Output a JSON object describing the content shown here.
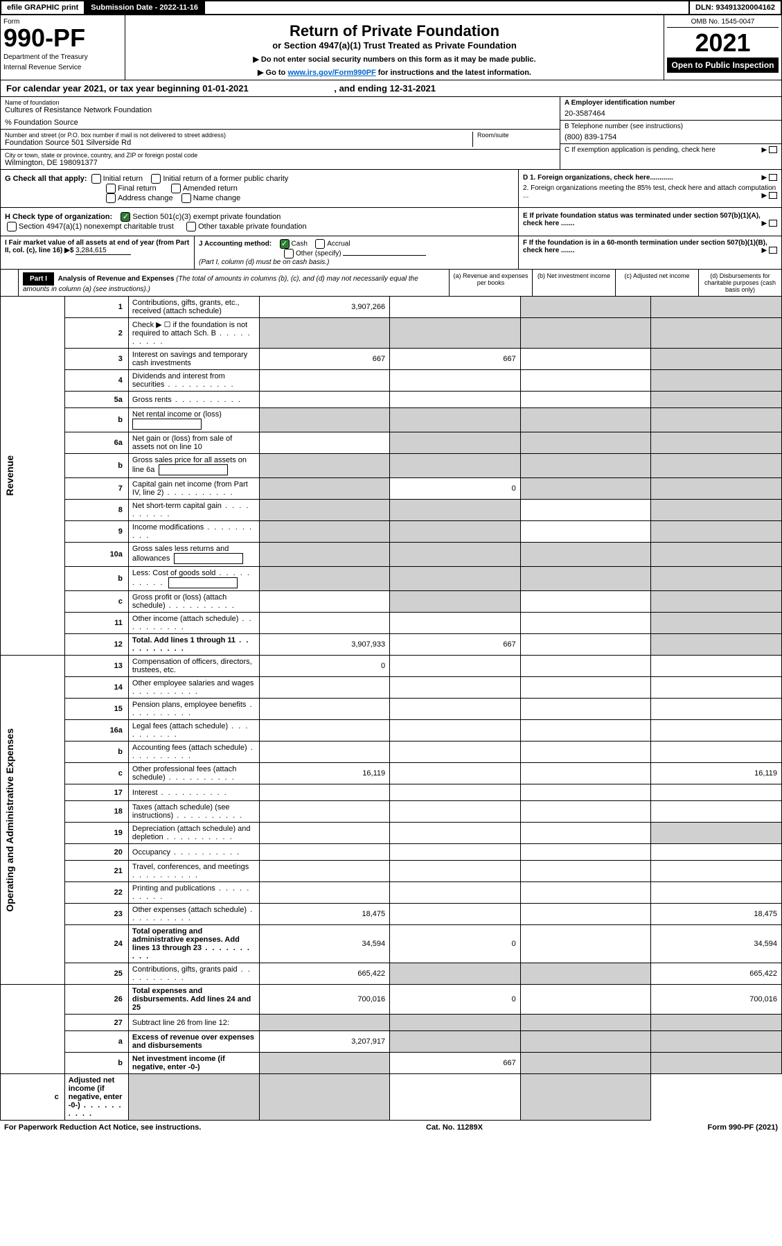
{
  "top": {
    "efile": "efile GRAPHIC print",
    "sub_date_label": "Submission Date - 2022-11-16",
    "dln": "DLN: 93491320004162"
  },
  "header": {
    "form_label": "Form",
    "form_no": "990-PF",
    "dept": "Department of the Treasury",
    "irs": "Internal Revenue Service",
    "title": "Return of Private Foundation",
    "subtitle": "or Section 4947(a)(1) Trust Treated as Private Foundation",
    "instr1": "▶ Do not enter social security numbers on this form as it may be made public.",
    "instr2_pre": "▶ Go to ",
    "instr2_link": "www.irs.gov/Form990PF",
    "instr2_post": " for instructions and the latest information.",
    "omb": "OMB No. 1545-0047",
    "year": "2021",
    "open": "Open to Public Inspection"
  },
  "cal_year": {
    "pre": "For calendar year 2021, or tax year beginning ",
    "begin": "01-01-2021",
    "mid": " , and ending ",
    "end": "12-31-2021"
  },
  "info": {
    "name_label": "Name of foundation",
    "name": "Cultures of Resistance Network Foundation",
    "care_of": "% Foundation Source",
    "addr_label": "Number and street (or P.O. box number if mail is not delivered to street address)",
    "addr": "Foundation Source 501 Silverside Rd",
    "room_label": "Room/suite",
    "city_label": "City or town, state or province, country, and ZIP or foreign postal code",
    "city": "Wilmington, DE  198091377",
    "a_label": "A Employer identification number",
    "ein": "20-3587464",
    "b_label": "B Telephone number (see instructions)",
    "phone": "(800) 839-1754",
    "c_label": "C If exemption application is pending, check here"
  },
  "g": {
    "label": "G Check all that apply:",
    "initial": "Initial return",
    "initial_former": "Initial return of a former public charity",
    "final": "Final return",
    "amended": "Amended return",
    "addr_change": "Address change",
    "name_change": "Name change"
  },
  "d": {
    "d1": "D 1. Foreign organizations, check here............",
    "d2": "2. Foreign organizations meeting the 85% test, check here and attach computation ..."
  },
  "h": {
    "label": "H Check type of organization:",
    "501c3": "Section 501(c)(3) exempt private foundation",
    "4947": "Section 4947(a)(1) nonexempt charitable trust",
    "other_taxable": "Other taxable private foundation"
  },
  "e": {
    "text": "E  If private foundation status was terminated under section 507(b)(1)(A), check here ......."
  },
  "i": {
    "label": "I Fair market value of all assets at end of year (from Part II, col. (c), line 16) ▶$ ",
    "value": "3,284,615"
  },
  "j": {
    "label": "J Accounting method:",
    "cash": "Cash",
    "accrual": "Accrual",
    "other": "Other (specify)",
    "note": "(Part I, column (d) must be on cash basis.)"
  },
  "f": {
    "text": "F  If the foundation is in a 60-month termination under section 507(b)(1)(B), check here ......."
  },
  "part1": {
    "label": "Part I",
    "title": "Analysis of Revenue and Expenses",
    "note": " (The total of amounts in columns (b), (c), and (d) may not necessarily equal the amounts in column (a) (see instructions).)",
    "col_a": "(a) Revenue and expenses per books",
    "col_b": "(b) Net investment income",
    "col_c": "(c) Adjusted net income",
    "col_d": "(d) Disbursements for charitable purposes (cash basis only)"
  },
  "sections": {
    "revenue": "Revenue",
    "expenses": "Operating and Administrative Expenses"
  },
  "rows": [
    {
      "n": "1",
      "desc": "Contributions, gifts, grants, etc., received (attach schedule)",
      "a": "3,907,266",
      "b": "",
      "c": "",
      "d": "",
      "shade_c": true,
      "shade_d": true
    },
    {
      "n": "2",
      "desc": "Check ▶ ☐ if the foundation is not required to attach Sch. B",
      "a": "",
      "b": "",
      "c": "",
      "d": "",
      "shade_a": true,
      "shade_b": true,
      "shade_c": true,
      "shade_d": true,
      "dotted": true
    },
    {
      "n": "3",
      "desc": "Interest on savings and temporary cash investments",
      "a": "667",
      "b": "667",
      "c": "",
      "d": "",
      "shade_d": true
    },
    {
      "n": "4",
      "desc": "Dividends and interest from securities",
      "a": "",
      "b": "",
      "c": "",
      "d": "",
      "shade_d": true,
      "dotted": true
    },
    {
      "n": "5a",
      "desc": "Gross rents",
      "a": "",
      "b": "",
      "c": "",
      "d": "",
      "shade_d": true,
      "dotted": true
    },
    {
      "n": "b",
      "desc": "Net rental income or (loss)",
      "a": "",
      "b": "",
      "c": "",
      "d": "",
      "shade_a": true,
      "shade_b": true,
      "shade_c": true,
      "shade_d": true,
      "box": true
    },
    {
      "n": "6a",
      "desc": "Net gain or (loss) from sale of assets not on line 10",
      "a": "",
      "b": "",
      "c": "",
      "d": "",
      "shade_b": true,
      "shade_c": true,
      "shade_d": true
    },
    {
      "n": "b",
      "desc": "Gross sales price for all assets on line 6a",
      "a": "",
      "b": "",
      "c": "",
      "d": "",
      "shade_a": true,
      "shade_b": true,
      "shade_c": true,
      "shade_d": true,
      "box": true
    },
    {
      "n": "7",
      "desc": "Capital gain net income (from Part IV, line 2)",
      "a": "",
      "b": "0",
      "c": "",
      "d": "",
      "shade_a": true,
      "shade_c": true,
      "shade_d": true,
      "dotted": true
    },
    {
      "n": "8",
      "desc": "Net short-term capital gain",
      "a": "",
      "b": "",
      "c": "",
      "d": "",
      "shade_a": true,
      "shade_b": true,
      "shade_d": true,
      "dotted": true
    },
    {
      "n": "9",
      "desc": "Income modifications",
      "a": "",
      "b": "",
      "c": "",
      "d": "",
      "shade_a": true,
      "shade_b": true,
      "shade_d": true,
      "dotted": true
    },
    {
      "n": "10a",
      "desc": "Gross sales less returns and allowances",
      "a": "",
      "b": "",
      "c": "",
      "d": "",
      "shade_a": true,
      "shade_b": true,
      "shade_c": true,
      "shade_d": true,
      "box": true
    },
    {
      "n": "b",
      "desc": "Less: Cost of goods sold",
      "a": "",
      "b": "",
      "c": "",
      "d": "",
      "shade_a": true,
      "shade_b": true,
      "shade_c": true,
      "shade_d": true,
      "box": true,
      "dotted": true
    },
    {
      "n": "c",
      "desc": "Gross profit or (loss) (attach schedule)",
      "a": "",
      "b": "",
      "c": "",
      "d": "",
      "shade_b": true,
      "shade_d": true,
      "dotted": true
    },
    {
      "n": "11",
      "desc": "Other income (attach schedule)",
      "a": "",
      "b": "",
      "c": "",
      "d": "",
      "shade_d": true,
      "dotted": true
    },
    {
      "n": "12",
      "desc": "Total. Add lines 1 through 11",
      "a": "3,907,933",
      "b": "667",
      "c": "",
      "d": "",
      "shade_d": true,
      "bold": true,
      "dotted": true
    },
    {
      "n": "13",
      "desc": "Compensation of officers, directors, trustees, etc.",
      "a": "0",
      "b": "",
      "c": "",
      "d": ""
    },
    {
      "n": "14",
      "desc": "Other employee salaries and wages",
      "a": "",
      "b": "",
      "c": "",
      "d": "",
      "dotted": true
    },
    {
      "n": "15",
      "desc": "Pension plans, employee benefits",
      "a": "",
      "b": "",
      "c": "",
      "d": "",
      "dotted": true
    },
    {
      "n": "16a",
      "desc": "Legal fees (attach schedule)",
      "a": "",
      "b": "",
      "c": "",
      "d": "",
      "dotted": true
    },
    {
      "n": "b",
      "desc": "Accounting fees (attach schedule)",
      "a": "",
      "b": "",
      "c": "",
      "d": "",
      "dotted": true
    },
    {
      "n": "c",
      "desc": "Other professional fees (attach schedule)",
      "a": "16,119",
      "b": "",
      "c": "",
      "d": "16,119",
      "dotted": true
    },
    {
      "n": "17",
      "desc": "Interest",
      "a": "",
      "b": "",
      "c": "",
      "d": "",
      "dotted": true
    },
    {
      "n": "18",
      "desc": "Taxes (attach schedule) (see instructions)",
      "a": "",
      "b": "",
      "c": "",
      "d": "",
      "dotted": true
    },
    {
      "n": "19",
      "desc": "Depreciation (attach schedule) and depletion",
      "a": "",
      "b": "",
      "c": "",
      "d": "",
      "shade_d": true,
      "dotted": true
    },
    {
      "n": "20",
      "desc": "Occupancy",
      "a": "",
      "b": "",
      "c": "",
      "d": "",
      "dotted": true
    },
    {
      "n": "21",
      "desc": "Travel, conferences, and meetings",
      "a": "",
      "b": "",
      "c": "",
      "d": "",
      "dotted": true
    },
    {
      "n": "22",
      "desc": "Printing and publications",
      "a": "",
      "b": "",
      "c": "",
      "d": "",
      "dotted": true
    },
    {
      "n": "23",
      "desc": "Other expenses (attach schedule)",
      "a": "18,475",
      "b": "",
      "c": "",
      "d": "18,475",
      "dotted": true
    },
    {
      "n": "24",
      "desc": "Total operating and administrative expenses. Add lines 13 through 23",
      "a": "34,594",
      "b": "0",
      "c": "",
      "d": "34,594",
      "bold": true,
      "dotted": true
    },
    {
      "n": "25",
      "desc": "Contributions, gifts, grants paid",
      "a": "665,422",
      "b": "",
      "c": "",
      "d": "665,422",
      "shade_b": true,
      "shade_c": true,
      "dotted": true
    },
    {
      "n": "26",
      "desc": "Total expenses and disbursements. Add lines 24 and 25",
      "a": "700,016",
      "b": "0",
      "c": "",
      "d": "700,016",
      "bold": true
    },
    {
      "n": "27",
      "desc": "Subtract line 26 from line 12:",
      "a": "",
      "b": "",
      "c": "",
      "d": "",
      "shade_a": true,
      "shade_b": true,
      "shade_c": true,
      "shade_d": true
    },
    {
      "n": "a",
      "desc": "Excess of revenue over expenses and disbursements",
      "a": "3,207,917",
      "b": "",
      "c": "",
      "d": "",
      "shade_b": true,
      "shade_c": true,
      "shade_d": true,
      "bold": true
    },
    {
      "n": "b",
      "desc": "Net investment income (if negative, enter -0-)",
      "a": "",
      "b": "667",
      "c": "",
      "d": "",
      "shade_a": true,
      "shade_c": true,
      "shade_d": true,
      "bold": true
    },
    {
      "n": "c",
      "desc": "Adjusted net income (if negative, enter -0-)",
      "a": "",
      "b": "",
      "c": "",
      "d": "",
      "shade_a": true,
      "shade_b": true,
      "shade_d": true,
      "bold": true,
      "dotted": true
    }
  ],
  "footer": {
    "left": "For Paperwork Reduction Act Notice, see instructions.",
    "mid": "Cat. No. 11289X",
    "right": "Form 990-PF (2021)"
  },
  "colors": {
    "black": "#000000",
    "shade": "#d0d0d0",
    "link": "#0066cc",
    "check_green": "#2e7d32"
  }
}
